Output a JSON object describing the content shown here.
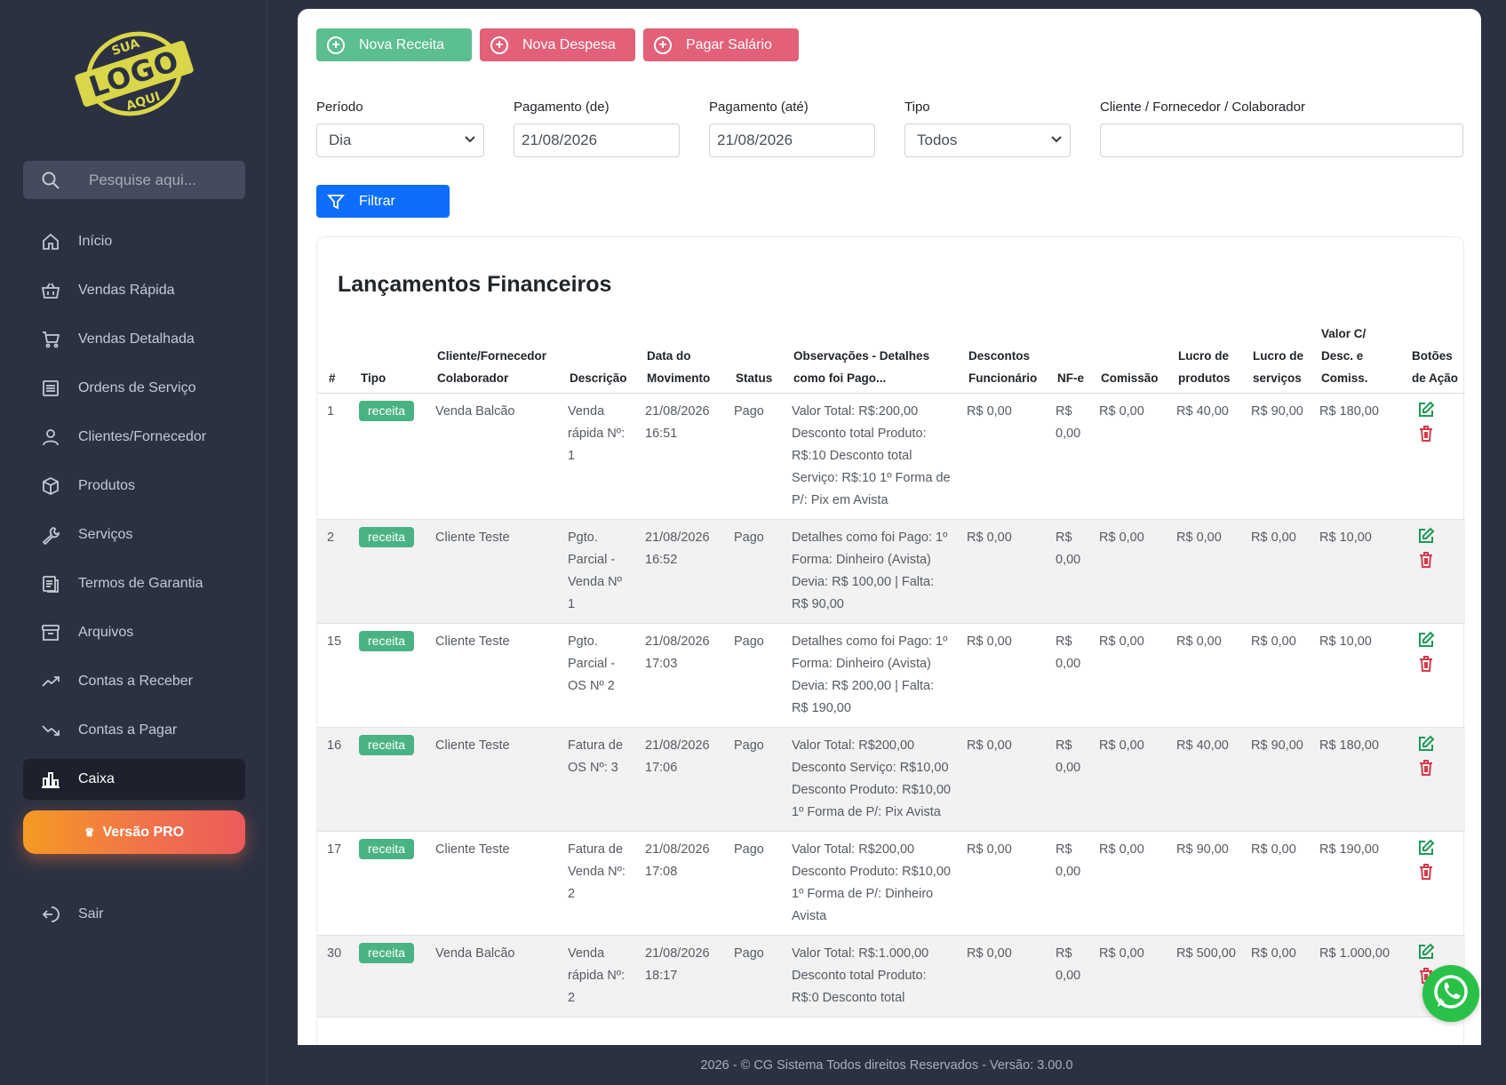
{
  "logo": {
    "line1": "SUA",
    "line2": "LOGO",
    "line3": "AQUI",
    "color": "#d9d64a"
  },
  "search": {
    "placeholder": "Pesquise aqui..."
  },
  "sidebar": {
    "items": [
      {
        "label": "Início",
        "icon": "home-icon"
      },
      {
        "label": "Vendas Rápida",
        "icon": "basket-icon"
      },
      {
        "label": "Vendas Detalhada",
        "icon": "cart-icon"
      },
      {
        "label": "Ordens de Serviço",
        "icon": "list-icon"
      },
      {
        "label": "Clientes/Fornecedor",
        "icon": "user-icon"
      },
      {
        "label": "Produtos",
        "icon": "box-icon"
      },
      {
        "label": "Serviços",
        "icon": "wrench-icon"
      },
      {
        "label": "Termos de Garantia",
        "icon": "document-icon"
      },
      {
        "label": "Arquivos",
        "icon": "archive-icon"
      },
      {
        "label": "Contas a Receber",
        "icon": "trend-up-icon"
      },
      {
        "label": "Contas a Pagar",
        "icon": "trend-down-icon"
      },
      {
        "label": "Caixa",
        "icon": "bar-chart-icon",
        "active": true
      }
    ],
    "pro_label": "Versão PRO",
    "logout_label": "Sair"
  },
  "toolbar": {
    "new_income": "Nova Receita",
    "new_expense": "Nova Despesa",
    "pay_salary": "Pagar Salário"
  },
  "filters": {
    "period_label": "Período",
    "period_value": "Dia",
    "pay_from_label": "Pagamento (de)",
    "pay_from_value": "21/08/2026",
    "pay_to_label": "Pagamento (até)",
    "pay_to_value": "21/08/2026",
    "type_label": "Tipo",
    "type_value": "Todos",
    "client_label": "Cliente / Fornecedor / Colaborador",
    "client_value": "",
    "filter_button": "Filtrar"
  },
  "table": {
    "title": "Lançamentos Financeiros",
    "headers": [
      "#",
      "Tipo",
      "Cliente/Fornecedor Colaborador",
      "Descrição",
      "Data do Movimento",
      "Status",
      "Observações - Detalhes como foi Pago...",
      "Descontos Funcionário",
      "NF-e",
      "Comissão",
      "Lucro de produtos",
      "Lucro de serviços",
      "Valor C/ Desc. e Comiss.",
      "Botões de Ação"
    ],
    "rows": [
      {
        "id": "1",
        "type": "receita",
        "client": "Venda Balcão",
        "desc": "Venda rápida Nº: 1",
        "date": "21/08/2026 16:51",
        "status": "Pago",
        "obs": "Valor Total: R$:200,00 Desconto total Produto: R$:10 Desconto total Serviço: R$:10 1º Forma de P/: Pix em Avista",
        "disc": "R$ 0,00",
        "nfe": "R$ 0,00",
        "comm": "R$ 0,00",
        "lp": "R$ 40,00",
        "ls": "R$ 90,00",
        "total": "R$ 180,00"
      },
      {
        "id": "2",
        "type": "receita",
        "client": "Cliente Teste",
        "desc": "Pgto. Parcial - Venda Nº 1",
        "date": "21/08/2026 16:52",
        "status": "Pago",
        "obs": "Detalhes como foi Pago: 1º Forma: Dinheiro (Avista) Devia: R$ 100,00 | Falta: R$ 90,00",
        "disc": "R$ 0,00",
        "nfe": "R$ 0,00",
        "comm": "R$ 0,00",
        "lp": "R$ 0,00",
        "ls": "R$ 0,00",
        "total": "R$ 10,00"
      },
      {
        "id": "15",
        "type": "receita",
        "client": "Cliente Teste",
        "desc": "Pgto. Parcial - OS Nº 2",
        "date": "21/08/2026 17:03",
        "status": "Pago",
        "obs": "Detalhes como foi Pago: 1º Forma: Dinheiro (Avista) Devia: R$ 200,00 | Falta: R$ 190,00",
        "disc": "R$ 0,00",
        "nfe": "R$ 0,00",
        "comm": "R$ 0,00",
        "lp": "R$ 0,00",
        "ls": "R$ 0,00",
        "total": "R$ 10,00"
      },
      {
        "id": "16",
        "type": "receita",
        "client": "Cliente Teste",
        "desc": "Fatura de OS Nº: 3",
        "date": "21/08/2026 17:06",
        "status": "Pago",
        "obs": "Valor Total: R$200,00 Desconto Serviço: R$10,00 Desconto Produto: R$10,00 1º Forma de P/: Pix Avista",
        "disc": "R$ 0,00",
        "nfe": "R$ 0,00",
        "comm": "R$ 0,00",
        "lp": "R$ 40,00",
        "ls": "R$ 90,00",
        "total": "R$ 180,00"
      },
      {
        "id": "17",
        "type": "receita",
        "client": "Cliente Teste",
        "desc": "Fatura de Venda Nº: 2",
        "date": "21/08/2026 17:08",
        "status": "Pago",
        "obs": "Valor Total: R$200,00 Desconto Produto: R$10,00 1º Forma de P/: Dinheiro Avista",
        "disc": "R$ 0,00",
        "nfe": "R$ 0,00",
        "comm": "R$ 0,00",
        "lp": "R$ 90,00",
        "ls": "R$ 0,00",
        "total": "R$ 190,00"
      },
      {
        "id": "30",
        "type": "receita",
        "client": "Venda Balcão",
        "desc": "Venda rápida Nº: 2",
        "date": "21/08/2026 18:17",
        "status": "Pago",
        "obs": "Valor Total: R$:1.000,00 Desconto total Produto: R$:0 Desconto total",
        "disc": "R$ 0,00",
        "nfe": "R$ 0,00",
        "comm": "R$ 0,00",
        "lp": "R$ 500,00",
        "ls": "R$ 0,00",
        "total": "R$ 1.000,00"
      }
    ]
  },
  "footer": {
    "text": "2026 - © CG Sistema Todos direitos Reservados - Versão: 3.00.0"
  },
  "colors": {
    "sidebar_bg": "#2c3142",
    "green": "#5cbf8f",
    "red": "#e36079",
    "blue": "#0d6efd",
    "badge": "#4ab383",
    "whatsapp": "#2ac148"
  }
}
